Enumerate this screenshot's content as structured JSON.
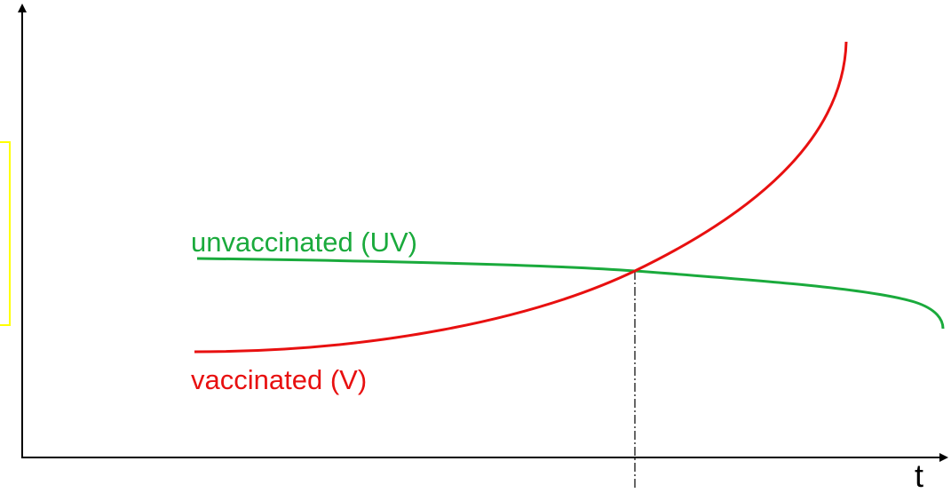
{
  "curves": [
    {
      "label": "unvaccinated (UV)"
    },
    {
      "label": "vaccinated (V)"
    }
  ],
  "x_axis": {
    "label": "t"
  }
}
